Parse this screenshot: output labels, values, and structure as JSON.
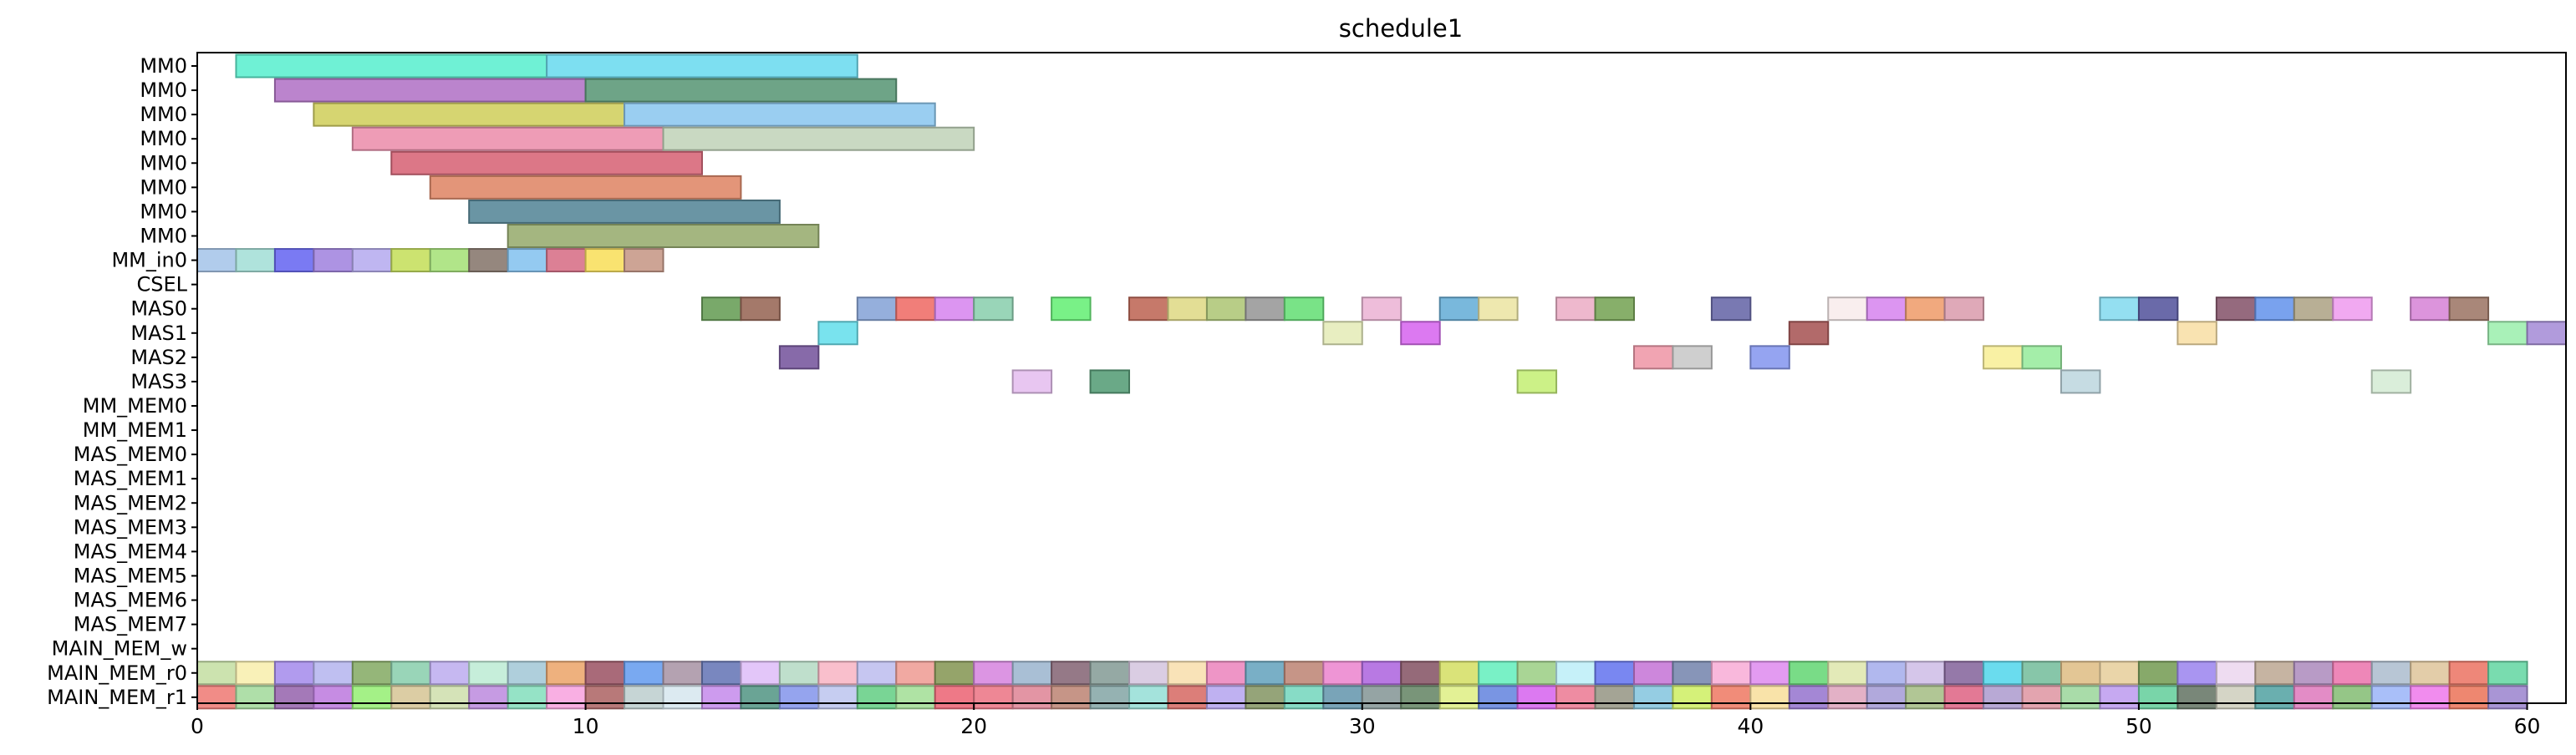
{
  "chart_data": {
    "type": "gantt",
    "title": "schedule1",
    "xlim": [
      0,
      61
    ],
    "xticks": [
      0,
      10,
      20,
      30,
      40,
      50,
      60
    ],
    "rows": [
      "MM0",
      "MM0",
      "MM0",
      "MM0",
      "MM0",
      "MM0",
      "MM0",
      "MM0",
      "MM_in0",
      "CSEL",
      "MAS0",
      "MAS1",
      "MAS2",
      "MAS3",
      "MM_MEM0",
      "MM_MEM1",
      "MAS_MEM0",
      "MAS_MEM1",
      "MAS_MEM2",
      "MAS_MEM3",
      "MAS_MEM4",
      "MAS_MEM5",
      "MAS_MEM6",
      "MAS_MEM7",
      "MAIN_MEM_w",
      "MAIN_MEM_r0",
      "MAIN_MEM_r1"
    ],
    "bars": [
      {
        "row": 0,
        "start": 1,
        "end": 9,
        "color": "#5ff0d0"
      },
      {
        "row": 0,
        "start": 9,
        "end": 17,
        "color": "#6fdcef"
      },
      {
        "row": 1,
        "start": 2,
        "end": 10,
        "color": "#b477c8"
      },
      {
        "row": 1,
        "start": 10,
        "end": 18,
        "color": "#5e9a7a"
      },
      {
        "row": 2,
        "start": 3,
        "end": 11,
        "color": "#d2d062"
      },
      {
        "row": 2,
        "start": 11,
        "end": 19,
        "color": "#8fc9f0"
      },
      {
        "row": 3,
        "start": 4,
        "end": 12,
        "color": "#ec91ae"
      },
      {
        "row": 3,
        "start": 12,
        "end": 20,
        "color": "#c3d5bb"
      },
      {
        "row": 4,
        "start": 5,
        "end": 13,
        "color": "#d8687a"
      },
      {
        "row": 5,
        "start": 6,
        "end": 14,
        "color": "#e08a6a"
      },
      {
        "row": 6,
        "start": 7,
        "end": 15,
        "color": "#5a8a9a"
      },
      {
        "row": 7,
        "start": 8,
        "end": 16,
        "color": "#9aae72"
      },
      {
        "row": 8,
        "start": 0,
        "end": 1,
        "color": "#a9c6ea"
      },
      {
        "row": 8,
        "start": 1,
        "end": 2,
        "color": "#a6e0d8"
      },
      {
        "row": 8,
        "start": 2,
        "end": 3,
        "color": "#6b6bf2"
      },
      {
        "row": 8,
        "start": 3,
        "end": 4,
        "color": "#a487e0"
      },
      {
        "row": 8,
        "start": 4,
        "end": 5,
        "color": "#b8aef0"
      },
      {
        "row": 8,
        "start": 5,
        "end": 6,
        "color": "#c6e060"
      },
      {
        "row": 8,
        "start": 6,
        "end": 7,
        "color": "#a8e27c"
      },
      {
        "row": 8,
        "start": 7,
        "end": 8,
        "color": "#8a7a70"
      },
      {
        "row": 8,
        "start": 8,
        "end": 9,
        "color": "#88c4f0"
      },
      {
        "row": 8,
        "start": 9,
        "end": 10,
        "color": "#d8728a"
      },
      {
        "row": 8,
        "start": 10,
        "end": 11,
        "color": "#f8e060"
      },
      {
        "row": 8,
        "start": 11,
        "end": 12,
        "color": "#c89a8a"
      },
      {
        "row": 10,
        "start": 13,
        "end": 14,
        "color": "#6aa05a"
      },
      {
        "row": 10,
        "start": 14,
        "end": 15,
        "color": "#9a6a5a"
      },
      {
        "row": 10,
        "start": 17,
        "end": 18,
        "color": "#8aa6d8"
      },
      {
        "row": 10,
        "start": 18,
        "end": 19,
        "color": "#f0706a"
      },
      {
        "row": 10,
        "start": 19,
        "end": 20,
        "color": "#d88af0"
      },
      {
        "row": 10,
        "start": 20,
        "end": 21,
        "color": "#8ed0b0"
      },
      {
        "row": 10,
        "start": 22,
        "end": 23,
        "color": "#6af07a"
      },
      {
        "row": 10,
        "start": 24,
        "end": 25,
        "color": "#c06a5a"
      },
      {
        "row": 10,
        "start": 25,
        "end": 26,
        "color": "#e0da8a"
      },
      {
        "row": 10,
        "start": 26,
        "end": 27,
        "color": "#b0c87a"
      },
      {
        "row": 10,
        "start": 27,
        "end": 28,
        "color": "#9a9a9a"
      },
      {
        "row": 10,
        "start": 28,
        "end": 29,
        "color": "#6ae07a"
      },
      {
        "row": 10,
        "start": 30,
        "end": 31,
        "color": "#ecb6d6"
      },
      {
        "row": 10,
        "start": 32,
        "end": 33,
        "color": "#6ab0d8"
      },
      {
        "row": 10,
        "start": 33,
        "end": 34,
        "color": "#ece6a6"
      },
      {
        "row": 10,
        "start": 35,
        "end": 36,
        "color": "#ecb0c8"
      },
      {
        "row": 10,
        "start": 36,
        "end": 37,
        "color": "#7aa65a"
      },
      {
        "row": 10,
        "start": 39,
        "end": 40,
        "color": "#6a6aaa"
      },
      {
        "row": 10,
        "start": 42,
        "end": 43,
        "color": "#f8ecec"
      },
      {
        "row": 10,
        "start": 43,
        "end": 44,
        "color": "#d88af0"
      },
      {
        "row": 10,
        "start": 44,
        "end": 45,
        "color": "#f0a070"
      },
      {
        "row": 10,
        "start": 45,
        "end": 46,
        "color": "#dca0b0"
      },
      {
        "row": 10,
        "start": 49,
        "end": 50,
        "color": "#88dcf0"
      },
      {
        "row": 10,
        "start": 50,
        "end": 51,
        "color": "#5a5aa0"
      },
      {
        "row": 10,
        "start": 52,
        "end": 53,
        "color": "#8a5a70"
      },
      {
        "row": 10,
        "start": 53,
        "end": 54,
        "color": "#6a98ec"
      },
      {
        "row": 10,
        "start": 54,
        "end": 55,
        "color": "#b0a68a"
      },
      {
        "row": 10,
        "start": 55,
        "end": 56,
        "color": "#f0a0f0"
      },
      {
        "row": 10,
        "start": 57,
        "end": 58,
        "color": "#d888d8"
      },
      {
        "row": 10,
        "start": 58,
        "end": 59,
        "color": "#a07a6a"
      },
      {
        "row": 11,
        "start": 16,
        "end": 17,
        "color": "#6ae0ec"
      },
      {
        "row": 11,
        "start": 29,
        "end": 30,
        "color": "#e6ecba"
      },
      {
        "row": 11,
        "start": 31,
        "end": 32,
        "color": "#d86af0"
      },
      {
        "row": 11,
        "start": 41,
        "end": 42,
        "color": "#aa5a5a"
      },
      {
        "row": 11,
        "start": 51,
        "end": 52,
        "color": "#f8e0a8"
      },
      {
        "row": 11,
        "start": 59,
        "end": 60,
        "color": "#a0f0b0"
      },
      {
        "row": 11,
        "start": 60,
        "end": 61,
        "color": "#a890d8"
      },
      {
        "row": 12,
        "start": 15,
        "end": 16,
        "color": "#7a5aa0"
      },
      {
        "row": 12,
        "start": 37,
        "end": 38,
        "color": "#f09aaa"
      },
      {
        "row": 12,
        "start": 38,
        "end": 39,
        "color": "#cacaca"
      },
      {
        "row": 12,
        "start": 40,
        "end": 41,
        "color": "#8a9af0"
      },
      {
        "row": 12,
        "start": 46,
        "end": 47,
        "color": "#f8f09a"
      },
      {
        "row": 12,
        "start": 47,
        "end": 48,
        "color": "#9aeca0"
      },
      {
        "row": 13,
        "start": 21,
        "end": 22,
        "color": "#e6c0f0"
      },
      {
        "row": 13,
        "start": 23,
        "end": 24,
        "color": "#5aa07a"
      },
      {
        "row": 13,
        "start": 34,
        "end": 35,
        "color": "#c6f07a"
      },
      {
        "row": 13,
        "start": 48,
        "end": 49,
        "color": "#c0d8e0"
      },
      {
        "row": 13,
        "start": 56,
        "end": 57,
        "color": "#d6ecd6"
      }
    ],
    "stripe_rows": [
      {
        "row": 25,
        "start": 0,
        "colors": [
          "#c6e0a6",
          "#f8f0b0",
          "#a890ec",
          "#b8b8f0",
          "#8aae6a",
          "#8ed0b0",
          "#c0b0f0",
          "#c0ecd6",
          "#a6cad8",
          "#eca870",
          "#a05a6a",
          "#6aa0f0",
          "#ac98a8",
          "#6a7ab8",
          "#e0c0f8",
          "#b8dcc6",
          "#f8b8c6",
          "#c0c0f0",
          "#f0a098",
          "#8a9a5a",
          "#d88ae0",
          "#a0b8d0",
          "#8a6a7a",
          "#8aa09a",
          "#d6c8e0",
          "#f8e0b0",
          "#ec8ac0",
          "#6aa6c0",
          "#c08a7a",
          "#ec8ad0",
          "#b06ae0",
          "#8a5a6a",
          "#d6e06a",
          "#6af0c0",
          "#a0d08a",
          "#c0f0f8",
          "#6a7af0",
          "#c87ad8",
          "#7a8ab0",
          "#f8b0d8",
          "#e090f0",
          "#6ad87a",
          "#e0e8b0",
          "#a8b0ec",
          "#d0c0e8",
          "#8a6aa0",
          "#5ad8ec",
          "#7ac0a0",
          "#e0c08a",
          "#e8d0a0",
          "#7aa05a",
          "#a08af0",
          "#ecd8f0",
          "#c0ac98",
          "#b090c0",
          "#ec7ab0",
          "#b0c0d0",
          "#e0c8a0",
          "#ec7a6a",
          "#6ad8a6"
        ]
      },
      {
        "row": 26,
        "start": 0,
        "colors": [
          "#f0807a",
          "#a6dca0",
          "#9a6ab0",
          "#c080e0",
          "#9af07a",
          "#d8c89a",
          "#d0e0b0",
          "#c090e0",
          "#8ae0c0",
          "#f8a6e0",
          "#b06a6a",
          "#c0d0d0",
          "#d8e8f0",
          "#c890ec",
          "#5a9a8a",
          "#8a9aec",
          "#c0c8f0",
          "#6ad08a",
          "#a6e09a",
          "#ec6a7a",
          "#ec7a8a",
          "#e08a9a",
          "#c08a7a",
          "#8aaaaa",
          "#9ae0d8",
          "#d8706a",
          "#b8a8f0",
          "#8a9a6a",
          "#7ad8c0",
          "#6a9ab0",
          "#8a9a9a",
          "#6a8a6a",
          "#e0f08a",
          "#6a8ae0",
          "#d86af0",
          "#ec8098",
          "#9a9a8a",
          "#8ac8e0",
          "#d0f06a",
          "#f0806a",
          "#f8e0a0",
          "#9a7ad0",
          "#e0a8c0",
          "#a8a0d8",
          "#a8c08a",
          "#e06a8a",
          "#b0a0d0",
          "#e09aa6",
          "#a0d8a0",
          "#c0a0f0",
          "#6ad0a0",
          "#6a7a6a",
          "#d0d0c0",
          "#5aa6a6",
          "#e080c0",
          "#8ac07a",
          "#a0b8f8",
          "#f080ec",
          "#ec7a60",
          "#a08ad0"
        ]
      }
    ]
  }
}
